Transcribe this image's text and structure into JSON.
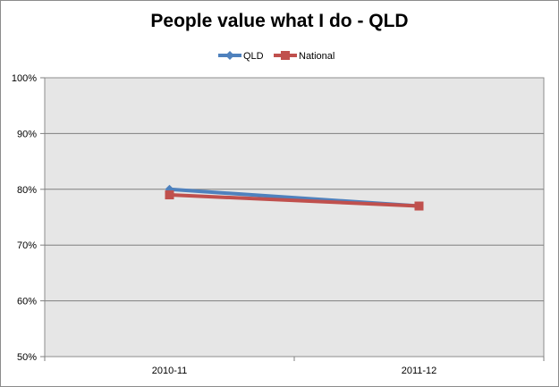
{
  "chart_data": {
    "type": "line",
    "title": "People value what I do - QLD",
    "xlabel": "",
    "ylabel": "",
    "categories": [
      "2010-11",
      "2011-12"
    ],
    "ylim": [
      0.5,
      1.0
    ],
    "yticks": [
      {
        "value": 0.5,
        "label": "50%"
      },
      {
        "value": 0.6,
        "label": "60%"
      },
      {
        "value": 0.7,
        "label": "70%"
      },
      {
        "value": 0.8,
        "label": "80%"
      },
      {
        "value": 0.9,
        "label": "90%"
      },
      {
        "value": 1.0,
        "label": "100%"
      }
    ],
    "grid": true,
    "legend": "top",
    "plot_background": "#e6e6e6",
    "series": [
      {
        "name": "QLD",
        "values": [
          0.8,
          0.77
        ],
        "color": "#4f81bd",
        "marker": "diamond"
      },
      {
        "name": "National",
        "values": [
          0.79,
          0.77
        ],
        "color": "#c0504d",
        "marker": "square"
      }
    ]
  }
}
